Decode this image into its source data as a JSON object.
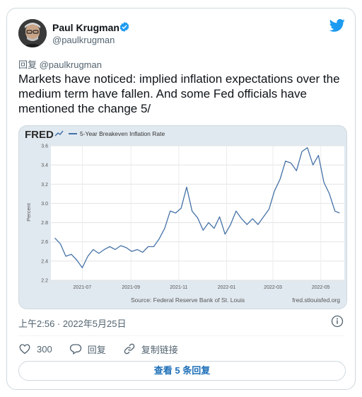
{
  "author": {
    "name": "Paul Krugman",
    "handle": "@paulkrugman",
    "verified": true
  },
  "tweet": {
    "reply_to": "回复 @paulkrugman",
    "text": "Markets have noticed: implied inflation expectations over the medium term have fallen. And some Fed officials have mentioned the change 5/",
    "timestamp": "上午2:56 · 2022年5月25日"
  },
  "actions": {
    "like_count": "300",
    "reply_label": "回复",
    "copy_link_label": "复制链接"
  },
  "read_replies_label": "查看 5 条回复",
  "icons": {
    "logo": "twitter-bird-icon",
    "verified": "verified-badge-icon",
    "info": "info-icon",
    "like": "heart-icon",
    "reply": "speech-bubble-icon",
    "copy": "link-icon"
  },
  "colors": {
    "accent": "#1d9bf0",
    "line": "#4572a7",
    "text_secondary": "#536471",
    "fred_logo": "#2b2b2b"
  },
  "chart_data": {
    "type": "line",
    "logo": "FRED",
    "title": "5-Year Breakeven Inflation Rate",
    "ylabel": "Percent",
    "xlabel": "",
    "ylim": [
      2.2,
      3.6
    ],
    "yticks": [
      2.2,
      2.4,
      2.6,
      2.8,
      3.0,
      3.2,
      3.4,
      3.6
    ],
    "xticks": [
      "2021-07",
      "2021-09",
      "2021-11",
      "2022-01",
      "2022-03",
      "2022-05"
    ],
    "source": "Source: Federal Reserve Bank of St. Louis",
    "url": "fred.stlouisfed.org",
    "series": [
      {
        "x": [
          "2021-05-27",
          "2021-06-03",
          "2021-06-10",
          "2021-06-17",
          "2021-06-24",
          "2021-07-01",
          "2021-07-08",
          "2021-07-15",
          "2021-07-22",
          "2021-07-29",
          "2021-08-05",
          "2021-08-12",
          "2021-08-19",
          "2021-08-26",
          "2021-09-02",
          "2021-09-09",
          "2021-09-16",
          "2021-09-23",
          "2021-09-30",
          "2021-10-07",
          "2021-10-14",
          "2021-10-21",
          "2021-10-28",
          "2021-11-04",
          "2021-11-11",
          "2021-11-18",
          "2021-11-25",
          "2021-12-02",
          "2021-12-09",
          "2021-12-16",
          "2021-12-23",
          "2021-12-30",
          "2022-01-06",
          "2022-01-13",
          "2022-01-20",
          "2022-01-27",
          "2022-02-03",
          "2022-02-10",
          "2022-02-17",
          "2022-02-24",
          "2022-03-03",
          "2022-03-10",
          "2022-03-17",
          "2022-03-24",
          "2022-03-31",
          "2022-04-07",
          "2022-04-14",
          "2022-04-21",
          "2022-04-28",
          "2022-05-05",
          "2022-05-12",
          "2022-05-19",
          "2022-05-25"
        ],
        "values": [
          2.64,
          2.58,
          2.45,
          2.47,
          2.41,
          2.33,
          2.45,
          2.52,
          2.48,
          2.52,
          2.55,
          2.52,
          2.56,
          2.54,
          2.5,
          2.52,
          2.49,
          2.55,
          2.55,
          2.63,
          2.74,
          2.92,
          2.9,
          2.95,
          3.17,
          2.92,
          2.85,
          2.72,
          2.8,
          2.74,
          2.86,
          2.68,
          2.78,
          2.92,
          2.84,
          2.78,
          2.84,
          2.78,
          2.86,
          2.94,
          3.13,
          3.25,
          3.44,
          3.42,
          3.34,
          3.54,
          3.58,
          3.4,
          3.5,
          3.22,
          3.1,
          2.92,
          2.9
        ]
      }
    ]
  }
}
